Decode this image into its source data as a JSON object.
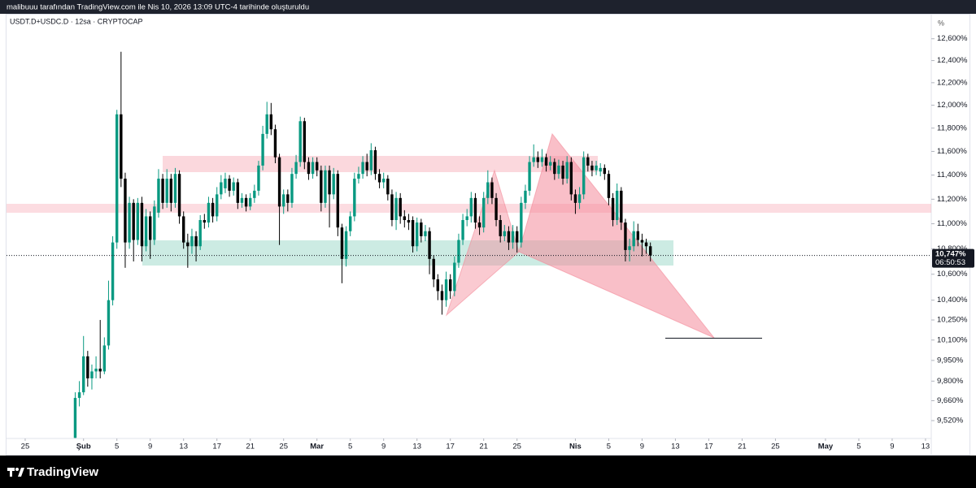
{
  "chart_data": {
    "type": "candlestick",
    "caption": "malibuuu tarafından TradingView.com ile Nis 10, 2026 13:09 UTC-4 tarihinde oluşturuldu",
    "title": "USDT.D+USDC.D · 12sa · CRYPTOCAP",
    "yaxis_label": "%",
    "brand": "TradingView",
    "up_color": "#089981",
    "down_color": "#000000",
    "yscale": "log",
    "grid": false,
    "xlim": [
      -2.24,
      108.69
    ],
    "ylim": [
      9.396,
      12.81
    ],
    "xticks": [
      {
        "value": 0,
        "label": "25"
      },
      {
        "value": 7,
        "label": "Şub"
      },
      {
        "value": 11,
        "label": "5"
      },
      {
        "value": 15,
        "label": "9"
      },
      {
        "value": 19,
        "label": "13"
      },
      {
        "value": 23,
        "label": "17"
      },
      {
        "value": 27,
        "label": "21"
      },
      {
        "value": 31,
        "label": "25"
      },
      {
        "value": 35,
        "label": "Mar"
      },
      {
        "value": 39,
        "label": "5"
      },
      {
        "value": 43,
        "label": "9"
      },
      {
        "value": 47,
        "label": "13"
      },
      {
        "value": 51,
        "label": "17"
      },
      {
        "value": 55,
        "label": "21"
      },
      {
        "value": 59,
        "label": "25"
      },
      {
        "value": 66,
        "label": "Nis"
      },
      {
        "value": 70,
        "label": "5"
      },
      {
        "value": 74,
        "label": "9"
      },
      {
        "value": 78,
        "label": "13"
      },
      {
        "value": 82,
        "label": "17"
      },
      {
        "value": 86,
        "label": "21"
      },
      {
        "value": 90,
        "label": "25"
      },
      {
        "value": 96,
        "label": "May"
      },
      {
        "value": 100,
        "label": "5"
      },
      {
        "value": 104,
        "label": "9"
      },
      {
        "value": 108,
        "label": "13"
      }
    ],
    "yticks": [
      {
        "value": 12.6,
        "label": "12,600%"
      },
      {
        "value": 12.4,
        "label": "12,400%"
      },
      {
        "value": 12.2,
        "label": "12,200%"
      },
      {
        "value": 12.0,
        "label": "12,000%"
      },
      {
        "value": 11.8,
        "label": "11,800%"
      },
      {
        "value": 11.6,
        "label": "11,600%"
      },
      {
        "value": 11.4,
        "label": "11,400%"
      },
      {
        "value": 11.2,
        "label": "11,200%"
      },
      {
        "value": 11.0,
        "label": "11,000%"
      },
      {
        "value": 10.8,
        "label": "10,800%"
      },
      {
        "value": 10.6,
        "label": "10,600%"
      },
      {
        "value": 10.4,
        "label": "10,400%"
      },
      {
        "value": 10.25,
        "label": "10,250%"
      },
      {
        "value": 10.1,
        "label": "10,100%"
      },
      {
        "value": 9.95,
        "label": "9,950%"
      },
      {
        "value": 9.8,
        "label": "9,800%"
      },
      {
        "value": 9.66,
        "label": "9,660%"
      },
      {
        "value": 9.52,
        "label": "9,520%"
      }
    ],
    "last_price": {
      "value": 10.747,
      "label": "10,747%"
    },
    "countdown": "06:50:53",
    "x": [
      6,
      6.5,
      7,
      7.5,
      8,
      8.5,
      9,
      9.5,
      10,
      10.5,
      11,
      11.5,
      12,
      12.5,
      13,
      13.5,
      14,
      14.5,
      15,
      15.5,
      16,
      16.5,
      17,
      17.5,
      18,
      18.5,
      19,
      19.5,
      20,
      20.5,
      21,
      21.5,
      22,
      22.5,
      23,
      23.5,
      24,
      24.5,
      25,
      25.5,
      26,
      26.5,
      27,
      27.5,
      28,
      28.5,
      29,
      29.5,
      30,
      30.5,
      31,
      31.5,
      32,
      32.5,
      33,
      33.5,
      34,
      34.5,
      35,
      35.5,
      36,
      36.5,
      37,
      37.5,
      38,
      38.5,
      39,
      39.5,
      40,
      40.5,
      41,
      41.5,
      42,
      42.5,
      43,
      43.5,
      44,
      44.5,
      45,
      45.5,
      46,
      46.5,
      47,
      47.5,
      48,
      48.5,
      49,
      49.5,
      50,
      50.5,
      51,
      51.5,
      52,
      52.5,
      53,
      53.5,
      54,
      54.5,
      55,
      55.5,
      56,
      56.5,
      57,
      57.5,
      58,
      58.5,
      59,
      59.5,
      60,
      60.5,
      61,
      61.5,
      62,
      62.5,
      63,
      63.5,
      64,
      64.5,
      65,
      65.5,
      66,
      66.5,
      67,
      67.5,
      68,
      68.5,
      69,
      69.5,
      70,
      70.5,
      71,
      71.5,
      72,
      72.5,
      73,
      73.5,
      74,
      74.5,
      75
    ],
    "open": [
      9.4,
      9.68,
      9.72,
      9.98,
      9.82,
      9.87,
      9.89,
      9.87,
      10.06,
      10.4,
      10.85,
      11.92,
      11.37,
      10.85,
      11.17,
      10.87,
      11.17,
      10.82,
      11.06,
      10.87,
      11.09,
      11.37,
      11.17,
      11.37,
      11.17,
      11.41,
      11.06,
      10.85,
      10.82,
      10.9,
      10.82,
      11.03,
      11.01,
      11.17,
      11.06,
      11.24,
      11.29,
      11.37,
      11.27,
      11.34,
      11.17,
      11.21,
      11.14,
      11.21,
      11.27,
      11.48,
      11.75,
      11.92,
      11.79,
      11.55,
      11.14,
      11.24,
      11.17,
      11.41,
      11.51,
      11.86,
      11.51,
      11.41,
      11.51,
      11.44,
      11.17,
      11.44,
      11.24,
      11.41,
      10.97,
      10.72,
      10.94,
      11.06,
      11.37,
      11.41,
      11.51,
      11.44,
      11.61,
      11.41,
      11.34,
      11.37,
      11.24,
      11.03,
      11.21,
      11.06,
      11.03,
      11.03,
      10.82,
      11.01,
      10.9,
      10.94,
      10.72,
      10.56,
      10.47,
      10.4,
      10.56,
      10.47,
      10.69,
      10.87,
      11.03,
      11.06,
      11.21,
      11.01,
      10.97,
      11.21,
      11.34,
      11.21,
      11.03,
      10.9,
      10.94,
      10.85,
      10.94,
      10.85,
      11.17,
      11.27,
      11.51,
      11.55,
      11.51,
      11.55,
      11.48,
      11.51,
      11.41,
      11.48,
      11.37,
      11.51,
      11.24,
      11.17,
      11.24,
      11.55,
      11.48,
      11.44,
      11.43,
      11.46,
      11.41,
      11.21,
      11.03,
      11.27,
      11.01,
      10.79,
      10.82,
      10.94,
      10.87,
      10.85,
      10.82
    ],
    "high": [
      9.72,
      9.8,
      10.13,
      10.02,
      9.92,
      9.98,
      10.25,
      10.12,
      10.55,
      10.9,
      11.96,
      12.48,
      11.42,
      11.22,
      11.2,
      11.21,
      11.22,
      11.12,
      11.1,
      11.19,
      11.45,
      11.41,
      11.45,
      11.41,
      11.46,
      11.44,
      11.1,
      10.92,
      10.96,
      10.94,
      11.07,
      11.08,
      11.22,
      11.21,
      11.3,
      11.4,
      11.42,
      11.4,
      11.38,
      11.37,
      11.25,
      11.24,
      11.25,
      11.32,
      11.52,
      11.82,
      12.03,
      12.02,
      11.83,
      11.58,
      11.28,
      11.28,
      11.46,
      11.57,
      11.9,
      11.89,
      11.55,
      11.55,
      11.55,
      11.48,
      11.48,
      11.48,
      11.46,
      11.44,
      11.0,
      10.98,
      11.1,
      11.42,
      11.47,
      11.56,
      11.58,
      11.67,
      11.64,
      11.45,
      11.42,
      11.4,
      11.28,
      11.26,
      11.25,
      11.11,
      11.08,
      11.06,
      11.05,
      11.04,
      10.99,
      10.97,
      10.75,
      10.6,
      10.52,
      10.62,
      10.6,
      10.74,
      10.92,
      11.08,
      11.12,
      11.26,
      11.25,
      11.06,
      11.26,
      11.44,
      11.38,
      11.25,
      11.07,
      10.99,
      10.98,
      10.99,
      10.98,
      11.22,
      11.32,
      11.56,
      11.66,
      11.6,
      11.62,
      11.58,
      11.56,
      11.54,
      11.53,
      11.52,
      11.56,
      11.55,
      11.28,
      11.3,
      11.6,
      11.58,
      11.52,
      11.52,
      11.5,
      11.49,
      11.44,
      11.25,
      11.33,
      11.3,
      11.04,
      10.88,
      11.02,
      11.0,
      10.92,
      10.88,
      10.85
    ],
    "low": [
      9.4,
      9.62,
      9.7,
      9.76,
      9.74,
      9.82,
      9.82,
      9.85,
      10.03,
      10.36,
      10.8,
      11.3,
      10.65,
      10.8,
      10.7,
      10.83,
      10.7,
      10.78,
      10.72,
      10.83,
      11.05,
      11.12,
      11.13,
      11.1,
      11.13,
      11.0,
      10.8,
      10.65,
      10.76,
      10.7,
      10.79,
      10.96,
      10.97,
      11.01,
      11.02,
      11.2,
      11.25,
      11.22,
      11.23,
      11.12,
      11.13,
      11.1,
      11.11,
      11.17,
      11.23,
      11.44,
      11.71,
      11.74,
      11.5,
      10.83,
      11.08,
      11.1,
      11.13,
      11.37,
      11.47,
      11.45,
      11.36,
      11.37,
      11.39,
      11.1,
      11.13,
      10.97,
      11.2,
      10.9,
      10.53,
      10.66,
      10.9,
      11.02,
      11.33,
      11.37,
      11.39,
      11.4,
      11.36,
      11.29,
      11.29,
      11.19,
      10.98,
      10.95,
      11.0,
      10.97,
      10.95,
      10.77,
      10.78,
      10.85,
      10.86,
      10.6,
      10.5,
      10.4,
      10.29,
      10.35,
      10.41,
      10.43,
      10.65,
      10.83,
      10.98,
      11.01,
      10.96,
      10.91,
      10.93,
      11.16,
      11.16,
      10.98,
      10.85,
      10.86,
      10.79,
      10.8,
      10.77,
      10.81,
      11.12,
      11.23,
      11.47,
      11.46,
      11.47,
      11.43,
      11.44,
      11.36,
      11.37,
      11.32,
      11.33,
      11.19,
      11.08,
      11.12,
      11.2,
      11.43,
      11.39,
      11.4,
      11.39,
      11.36,
      11.15,
      10.98,
      10.99,
      10.95,
      10.7,
      10.7,
      10.78,
      10.82,
      10.74,
      10.76,
      10.7
    ],
    "close": [
      9.68,
      9.72,
      9.98,
      9.82,
      9.87,
      9.89,
      9.87,
      10.06,
      10.4,
      10.85,
      11.92,
      11.37,
      10.85,
      11.17,
      10.87,
      11.17,
      10.82,
      11.06,
      10.87,
      11.14,
      11.37,
      11.17,
      11.37,
      11.17,
      11.41,
      11.06,
      10.85,
      10.82,
      10.9,
      10.82,
      11.03,
      11.01,
      11.17,
      11.06,
      11.24,
      11.34,
      11.37,
      11.27,
      11.34,
      11.17,
      11.21,
      11.14,
      11.21,
      11.27,
      11.48,
      11.75,
      11.92,
      11.79,
      11.55,
      11.14,
      11.24,
      11.17,
      11.41,
      11.51,
      11.86,
      11.51,
      11.41,
      11.51,
      11.44,
      11.17,
      11.44,
      11.24,
      11.41,
      10.97,
      10.72,
      10.94,
      11.06,
      11.37,
      11.41,
      11.51,
      11.44,
      11.61,
      11.41,
      11.34,
      11.37,
      11.24,
      11.03,
      11.21,
      11.06,
      11.03,
      11.01,
      10.82,
      11.01,
      10.9,
      10.94,
      10.72,
      10.56,
      10.47,
      10.4,
      10.56,
      10.47,
      10.69,
      10.87,
      11.03,
      11.06,
      11.21,
      11.01,
      10.97,
      11.21,
      11.34,
      11.21,
      11.03,
      10.9,
      10.94,
      10.85,
      10.94,
      10.85,
      11.17,
      11.27,
      11.51,
      11.55,
      11.51,
      11.55,
      11.48,
      11.51,
      11.41,
      11.48,
      11.37,
      11.51,
      11.24,
      11.17,
      11.24,
      11.55,
      11.48,
      11.44,
      11.48,
      11.46,
      11.41,
      11.21,
      11.03,
      11.27,
      11.01,
      10.79,
      10.82,
      10.94,
      10.87,
      10.85,
      10.82,
      10.747
    ]
  }
}
